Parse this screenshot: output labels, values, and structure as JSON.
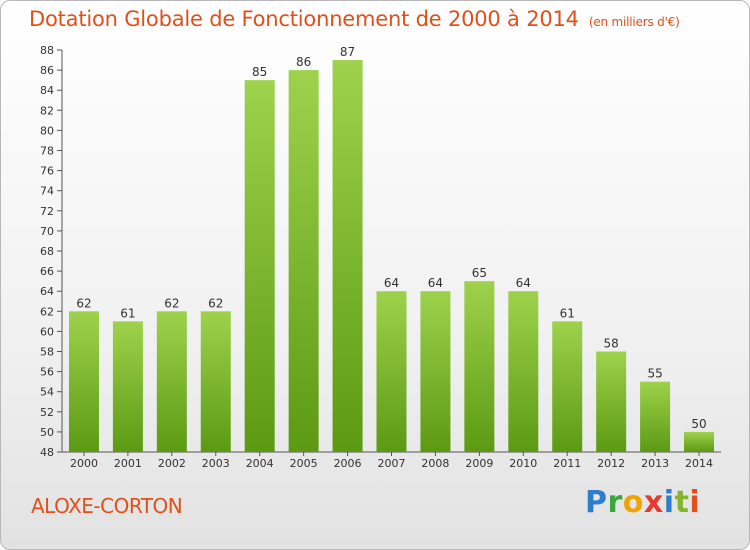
{
  "header": {
    "title": "Dotation Globale de Fonctionnement de 2000 à 2014",
    "unit": "(en milliers d'€)"
  },
  "footer": {
    "commune": "ALOXE-CORTON",
    "brand": "Proxiti"
  },
  "colors": {
    "title": "#e0501a",
    "bar_light": "#9ed24c",
    "bar_dark": "#5c9a14"
  },
  "chart_data": {
    "type": "bar",
    "title": "Dotation Globale de Fonctionnement de 2000 à 2014",
    "subtitle": "(en milliers d'€)",
    "categories": [
      "2000",
      "2001",
      "2002",
      "2003",
      "2004",
      "2005",
      "2006",
      "2007",
      "2008",
      "2009",
      "2010",
      "2011",
      "2012",
      "2013",
      "2014"
    ],
    "values": [
      62,
      61,
      62,
      62,
      85,
      86,
      87,
      64,
      64,
      65,
      64,
      61,
      58,
      55,
      50
    ],
    "ylim": [
      48,
      88
    ],
    "yticks": [
      48,
      50,
      52,
      54,
      56,
      58,
      60,
      62,
      64,
      66,
      68,
      70,
      72,
      74,
      76,
      78,
      80,
      82,
      84,
      86,
      88
    ],
    "grid": false,
    "data_labels": true
  }
}
